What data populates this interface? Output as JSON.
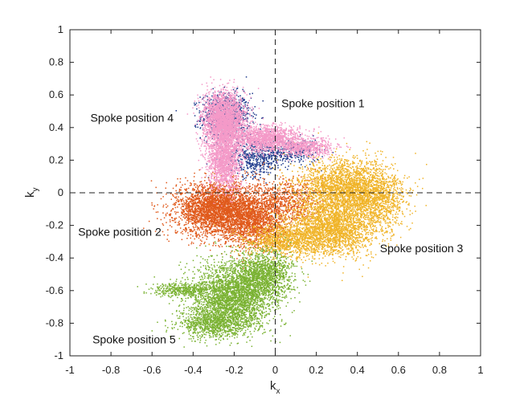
{
  "chart_data": {
    "type": "scatter",
    "xlabel": "k",
    "xlabel_sub": "x",
    "ylabel": "k",
    "ylabel_sub": "y",
    "xlim": [
      -1,
      1
    ],
    "ylim": [
      -1,
      1
    ],
    "x_ticks": [
      -1,
      -0.8,
      -0.6,
      -0.4,
      -0.2,
      0,
      0.2,
      0.4,
      0.6,
      0.8,
      1
    ],
    "y_ticks": [
      -1,
      -0.8,
      -0.6,
      -0.4,
      -0.2,
      0,
      0.2,
      0.4,
      0.6,
      0.8,
      1
    ],
    "x_tick_labels": [
      "-1",
      "-0.8",
      "-0.6",
      "-0.4",
      "-0.2",
      "0",
      "0.2",
      "0.4",
      "0.6",
      "0.8",
      "1"
    ],
    "y_tick_labels": [
      "-1",
      "-0.8",
      "-0.6",
      "-0.4",
      "-0.2",
      "0",
      "0.2",
      "0.4",
      "0.6",
      "0.8",
      "1"
    ],
    "grid": false,
    "reference_lines": {
      "x": 0,
      "y": 0,
      "style": "dashed"
    },
    "series": [
      {
        "color": "#1f3a8c",
        "clusters": [
          {
            "cx": -0.24,
            "cy": 0.47,
            "sx": 0.06,
            "sy": 0.07,
            "n": 900
          },
          {
            "cx": -0.1,
            "cy": 0.22,
            "sx": 0.07,
            "sy": 0.06,
            "n": 500
          },
          {
            "cx": 0.08,
            "cy": 0.25,
            "sx": 0.07,
            "sy": 0.04,
            "n": 300
          }
        ]
      },
      {
        "color": "#e05a1c",
        "clusters": [
          {
            "cx": -0.28,
            "cy": -0.1,
            "sx": 0.1,
            "sy": 0.08,
            "n": 3200
          },
          {
            "cx": -0.1,
            "cy": -0.18,
            "sx": 0.08,
            "sy": 0.08,
            "n": 1400
          },
          {
            "cx": 0.05,
            "cy": -0.05,
            "sx": 0.09,
            "sy": 0.07,
            "n": 700
          }
        ]
      },
      {
        "color": "#f0b429",
        "clusters": [
          {
            "cx": 0.35,
            "cy": 0.02,
            "sx": 0.12,
            "sy": 0.09,
            "n": 2600
          },
          {
            "cx": 0.28,
            "cy": -0.22,
            "sx": 0.11,
            "sy": 0.08,
            "n": 2200
          },
          {
            "cx": 0.05,
            "cy": -0.3,
            "sx": 0.1,
            "sy": 0.05,
            "n": 1000
          },
          {
            "cx": 0.5,
            "cy": -0.05,
            "sx": 0.07,
            "sy": 0.09,
            "n": 700
          }
        ]
      },
      {
        "color": "#f49ac8",
        "clusters": [
          {
            "cx": -0.25,
            "cy": 0.45,
            "sx": 0.05,
            "sy": 0.08,
            "n": 2600
          },
          {
            "cx": -0.25,
            "cy": 0.2,
            "sx": 0.04,
            "sy": 0.09,
            "n": 1400
          },
          {
            "cx": -0.05,
            "cy": 0.33,
            "sx": 0.08,
            "sy": 0.04,
            "n": 1400
          },
          {
            "cx": 0.15,
            "cy": 0.28,
            "sx": 0.07,
            "sy": 0.03,
            "n": 600
          }
        ]
      },
      {
        "color": "#7ab232",
        "clusters": [
          {
            "cx": -0.2,
            "cy": -0.63,
            "sx": 0.1,
            "sy": 0.1,
            "n": 2800
          },
          {
            "cx": -0.05,
            "cy": -0.5,
            "sx": 0.07,
            "sy": 0.07,
            "n": 1100
          },
          {
            "cx": -0.3,
            "cy": -0.8,
            "sx": 0.08,
            "sy": 0.05,
            "n": 900
          },
          {
            "cx": -0.45,
            "cy": -0.6,
            "sx": 0.08,
            "sy": 0.02,
            "n": 400
          }
        ]
      }
    ],
    "annotations": [
      {
        "text": "Spoke position 1",
        "x": 0.03,
        "y": 0.55
      },
      {
        "text": "Spoke position 4",
        "x": -0.9,
        "y": 0.46
      },
      {
        "text": "Spoke position 2",
        "x": -0.96,
        "y": -0.24
      },
      {
        "text": "Spoke position 3",
        "x": 0.51,
        "y": -0.34
      },
      {
        "text": "Spoke position 5",
        "x": -0.89,
        "y": -0.9
      }
    ]
  }
}
